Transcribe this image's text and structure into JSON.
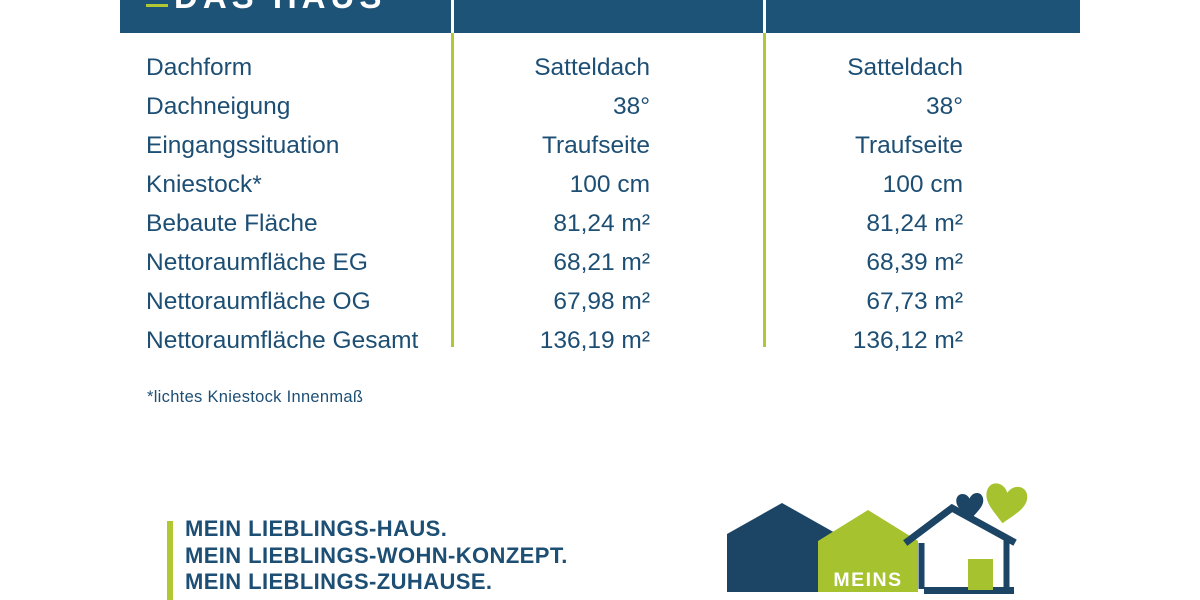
{
  "brand": {
    "wordmark": "DAS HAUS",
    "logo_text": "MEINS",
    "slogan_lines": [
      "MEIN LIEBLINGS-HAUS.",
      "MEIN LIEBLINGS-WOHN-KONZEPT.",
      "MEIN LIEBLINGS-ZUHAUSE."
    ]
  },
  "table": {
    "rows": [
      {
        "label": "Dachform",
        "value_left": "Satteldach",
        "value_right": "Satteldach"
      },
      {
        "label": "Dachneigung",
        "value_left": "38°",
        "value_right": "38°"
      },
      {
        "label": "Eingangssituation",
        "value_left": "Traufseite",
        "value_right": "Traufseite"
      },
      {
        "label": "Kniestock*",
        "value_left": "100 cm",
        "value_right": "100 cm"
      },
      {
        "label": "Bebaute Fläche",
        "value_left": "81,24 m²",
        "value_right": "81,24 m²"
      },
      {
        "label": "Nettoraumfläche EG",
        "value_left": "68,21 m²",
        "value_right": "68,39 m²"
      },
      {
        "label": "Nettoraumfläche OG",
        "value_left": "67,98 m²",
        "value_right": "67,73 m²"
      },
      {
        "label": "Nettoraumfläche Gesamt",
        "value_left": "136,19 m²",
        "value_right": "136,12 m²"
      }
    ],
    "footnote": "*lichtes Kniestock Innenmaß"
  },
  "colors": {
    "header_bar_blue": "#1e5378",
    "text_blue": "#1d4e74",
    "accent_green": "#b2c832",
    "logo_navy": "#1b4465",
    "logo_green": "#a6c32f"
  }
}
